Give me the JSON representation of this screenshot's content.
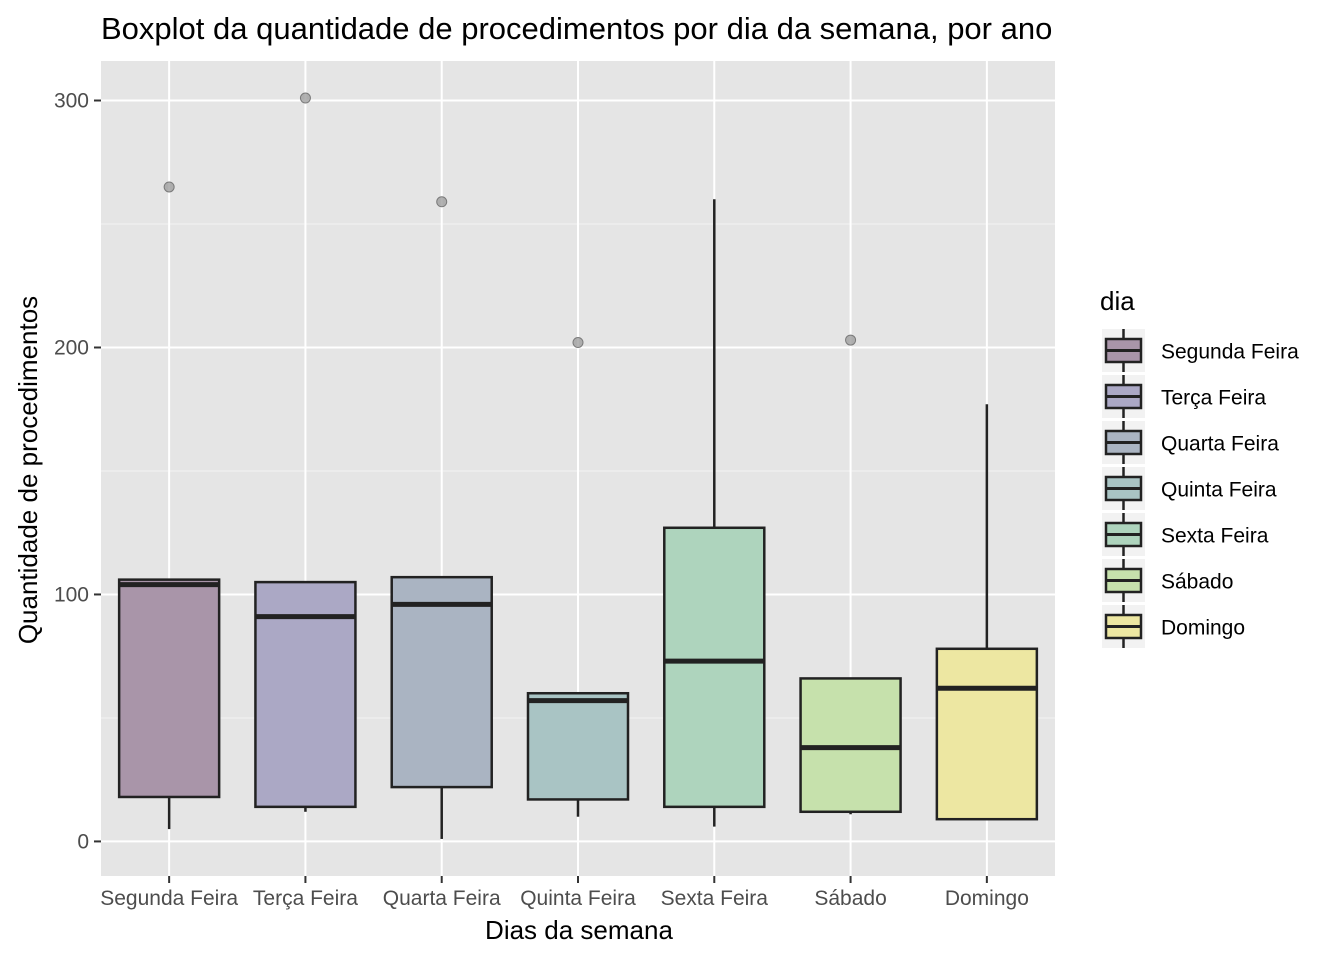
{
  "chart_data": {
    "type": "boxplot",
    "title": "Boxplot da quantidade de procedimentos por dia da semana, por ano",
    "xlabel": "Dias da semana",
    "ylabel": "Quantidade de procedimentos",
    "ylim": [
      -14,
      316
    ],
    "yticks": [
      0,
      100,
      200,
      300
    ],
    "grid": true,
    "legend": {
      "title": "dia",
      "position": "right"
    },
    "categories": [
      "Segunda Feira",
      "Terça Feira",
      "Quarta Feira",
      "Quinta Feira",
      "Sexta Feira",
      "Sábado",
      "Domingo"
    ],
    "boxes": [
      {
        "name": "Segunda Feira",
        "whisker_low": 5,
        "q1": 18,
        "median": 104,
        "q3": 106,
        "whisker_high": 106,
        "outliers": [
          265
        ],
        "color": "#a995a9"
      },
      {
        "name": "Terça Feira",
        "whisker_low": 12,
        "q1": 14,
        "median": 91,
        "q3": 105,
        "whisker_high": 105,
        "outliers": [
          301
        ],
        "color": "#aba8c5"
      },
      {
        "name": "Quarta Feira",
        "whisker_low": 1,
        "q1": 22,
        "median": 96,
        "q3": 107,
        "whisker_high": 107,
        "outliers": [
          259
        ],
        "color": "#aab4c2"
      },
      {
        "name": "Quinta Feira",
        "whisker_low": 10,
        "q1": 17,
        "median": 57,
        "q3": 60,
        "whisker_high": 60,
        "outliers": [
          202
        ],
        "color": "#a9c4c4"
      },
      {
        "name": "Sexta Feira",
        "whisker_low": 6,
        "q1": 14,
        "median": 73,
        "q3": 127,
        "whisker_high": 260,
        "outliers": [],
        "color": "#aed4bd"
      },
      {
        "name": "Sábado",
        "whisker_low": 11,
        "q1": 12,
        "median": 38,
        "q3": 66,
        "whisker_high": 66,
        "outliers": [
          203
        ],
        "color": "#c6e1ac"
      },
      {
        "name": "Domingo",
        "whisker_low": 9,
        "q1": 9,
        "median": 62,
        "q3": 78,
        "whisker_high": 177,
        "outliers": [],
        "color": "#ede7a2"
      }
    ]
  }
}
